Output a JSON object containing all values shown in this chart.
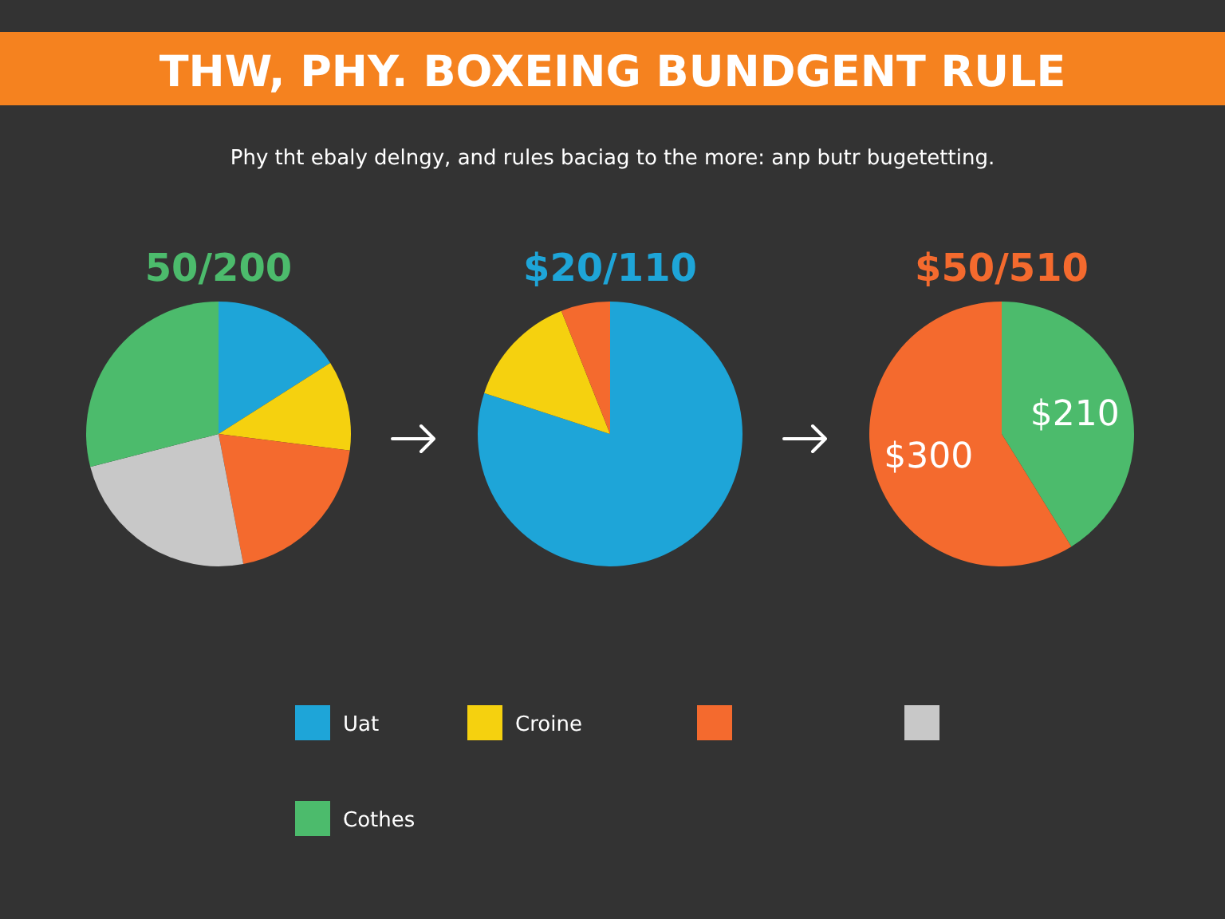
{
  "chart_data": [
    {
      "type": "other",
      "title": "THW, PHY. BOXEING BUNDGENT RULE",
      "subtitle": "Phy tht ebaly delngy, and rules baciag to the more: anp butr bugetetting."
    },
    {
      "type": "pie",
      "title": "50/200",
      "categories": [
        "Uat",
        "Croine",
        null,
        null,
        "Cothes"
      ],
      "values": [
        16,
        11,
        20,
        24,
        29
      ],
      "colors": [
        "#1ea5d8",
        "#f5d10f",
        "#f46a2e",
        "#c8c8c8",
        "#4cbb6c"
      ],
      "legend": "bottom"
    },
    {
      "type": "pie",
      "title": "$20/110",
      "categories": [
        null,
        null,
        null
      ],
      "values": [
        80,
        14,
        6
      ],
      "colors": [
        "#1ea5d8",
        "#f5d10f",
        "#f46a2e"
      ]
    },
    {
      "type": "pie",
      "title": "$50/510",
      "categories": [
        null,
        null
      ],
      "values": [
        210,
        300
      ],
      "colors": [
        "#4cbb6c",
        "#f46a2e"
      ],
      "value_labels": [
        "$210",
        "$300"
      ]
    }
  ]
}
